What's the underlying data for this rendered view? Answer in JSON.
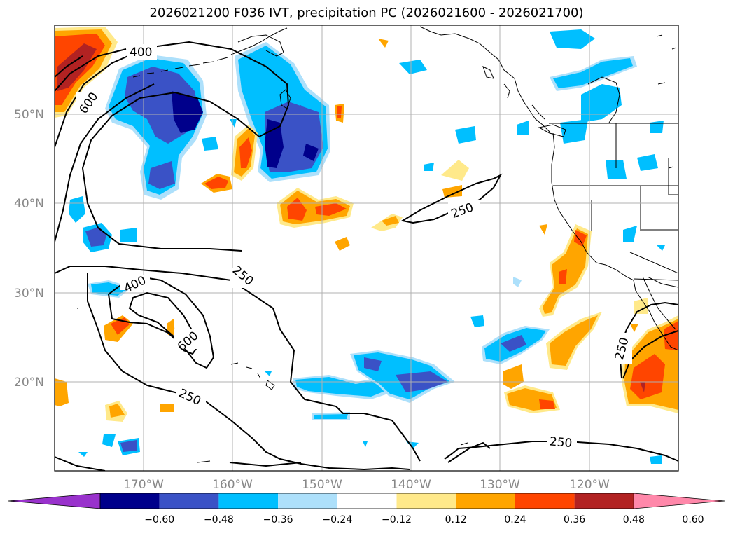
{
  "title": "2026021200 F036 IVT, precipitation PC (2026021600 - 2026021700)",
  "lat_labels": [
    "50°N",
    "40°N",
    "30°N",
    "20°N"
  ],
  "lon_labels": [
    "170°W",
    "160°W",
    "150°W",
    "140°W",
    "130°W",
    "120°W"
  ],
  "ivt_contour_labels": [
    "400",
    "600",
    "250",
    "400",
    "250",
    "600",
    "250",
    "250",
    "250"
  ],
  "colorbar": {
    "tick_labels": [
      "−0.60",
      "−0.48",
      "−0.36",
      "−0.24",
      "−0.12",
      "0.12",
      "0.24",
      "0.36",
      "0.48",
      "0.60"
    ],
    "colors": [
      "#9932cc",
      "#00008b",
      "#3a52c6",
      "#00bfff",
      "#ade0fb",
      "#ffffff",
      "#ffe98a",
      "#ffa500",
      "#ff4500",
      "#b22222",
      "#ff88aa"
    ]
  }
}
